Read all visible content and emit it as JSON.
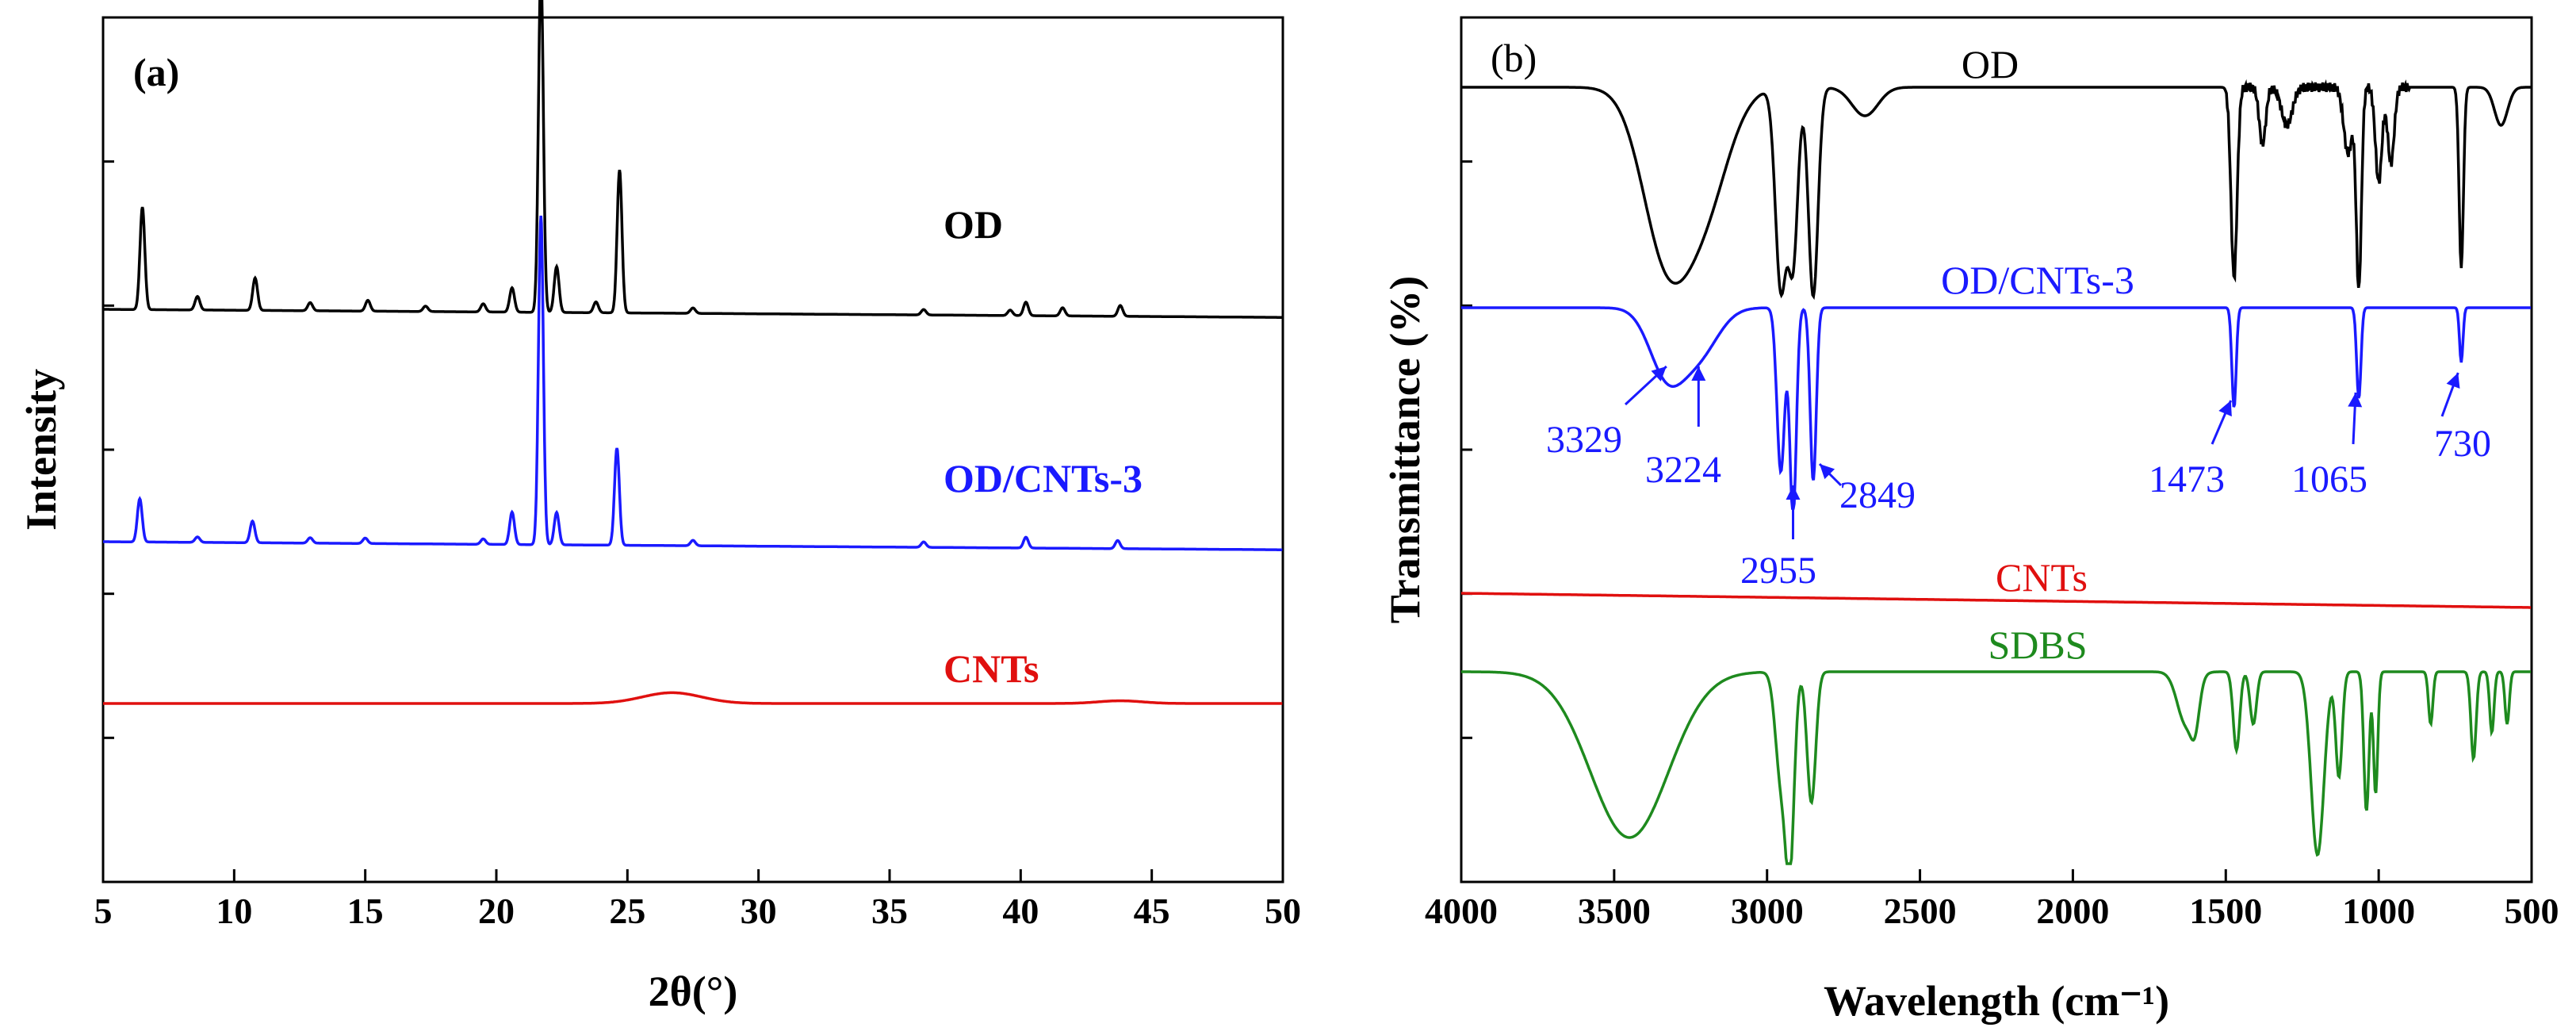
{
  "chart_data": [
    {
      "type": "line",
      "panel_label": "(a)",
      "title": "",
      "xlabel": "2θ(°)",
      "ylabel": "Intensity",
      "xlim": [
        5,
        50
      ],
      "xticks": [
        "5",
        "10",
        "15",
        "20",
        "25",
        "30",
        "35",
        "40",
        "45",
        "50"
      ],
      "yticks_shown": false,
      "colors": {
        "OD": "#000000",
        "OD/CNTs-3": "#1a1aff",
        "CNTs": "#e0100f"
      },
      "series": [
        {
          "name": "OD",
          "label": "OD",
          "baseline_offset": 2,
          "peaks": [
            [
              6.5,
              0.38
            ],
            [
              8.6,
              0.05
            ],
            [
              10.8,
              0.12
            ],
            [
              12.9,
              0.03
            ],
            [
              15.1,
              0.04
            ],
            [
              17.3,
              0.02
            ],
            [
              19.5,
              0.03
            ],
            [
              20.6,
              0.09
            ],
            [
              21.7,
              1.28
            ],
            [
              22.3,
              0.17
            ],
            [
              23.8,
              0.04
            ],
            [
              24.7,
              0.53
            ],
            [
              27.5,
              0.02
            ],
            [
              36.3,
              0.02
            ],
            [
              39.6,
              0.02
            ],
            [
              40.2,
              0.05
            ],
            [
              41.6,
              0.03
            ],
            [
              43.8,
              0.04
            ]
          ]
        },
        {
          "name": "OD/CNTs-3",
          "label": "OD/CNTs-3",
          "baseline_offset": 1,
          "peaks": [
            [
              6.4,
              0.16
            ],
            [
              8.6,
              0.02
            ],
            [
              10.7,
              0.08
            ],
            [
              12.9,
              0.02
            ],
            [
              15.0,
              0.02
            ],
            [
              19.5,
              0.02
            ],
            [
              20.6,
              0.12
            ],
            [
              21.7,
              1.22
            ],
            [
              22.3,
              0.12
            ],
            [
              24.6,
              0.36
            ],
            [
              27.5,
              0.02
            ],
            [
              36.3,
              0.02
            ],
            [
              40.2,
              0.04
            ],
            [
              43.7,
              0.03
            ]
          ]
        },
        {
          "name": "CNTs",
          "label": "CNTs",
          "baseline_offset": 0,
          "peaks": [
            [
              26.7,
              0.04
            ],
            [
              43.8,
              0.01
            ]
          ]
        }
      ]
    },
    {
      "type": "line",
      "panel_label": "(b)",
      "title": "",
      "xlabel": "Wavelength (cm⁻¹)",
      "ylabel": "Transmittance (%)",
      "xlim": [
        4000,
        500
      ],
      "xticks": [
        "4000",
        "3500",
        "3000",
        "2500",
        "2000",
        "1500",
        "1000",
        "500"
      ],
      "yticks_shown": false,
      "colors": {
        "OD": "#000000",
        "OD/CNTs-3": "#1a1aff",
        "CNTs": "#e0100f",
        "SDBS": "#1e8a1e"
      },
      "series": [
        {
          "name": "OD",
          "label": "OD",
          "baseline_offset": 3,
          "bands": [
            [
              3330,
              0.85,
              110
            ],
            [
              3200,
              0.55,
              110
            ],
            [
              2955,
              1.05,
              25
            ],
            [
              2915,
              0.9,
              22
            ],
            [
              2849,
              1.1,
              22
            ],
            [
              2680,
              0.15,
              60
            ],
            [
              1473,
              1.0,
              14
            ],
            [
              1380,
              0.3,
              15
            ],
            [
              1300,
              0.2,
              25
            ],
            [
              1100,
              0.35,
              20
            ],
            [
              1065,
              1.05,
              12
            ],
            [
              1000,
              0.5,
              15
            ],
            [
              960,
              0.4,
              15
            ],
            [
              730,
              0.95,
              10
            ],
            [
              600,
              0.2,
              30
            ]
          ]
        },
        {
          "name": "OD/CNTs-3",
          "label": "OD/CNTs-3",
          "baseline_offset": 2,
          "bands": [
            [
              3329,
              0.35,
              80
            ],
            [
              3224,
              0.25,
              90
            ],
            [
              2955,
              0.9,
              18
            ],
            [
              2915,
              1.15,
              15
            ],
            [
              2849,
              0.95,
              14
            ],
            [
              1473,
              0.55,
              10
            ],
            [
              1065,
              0.5,
              10
            ],
            [
              730,
              0.3,
              8
            ]
          ]
        },
        {
          "name": "CNTs",
          "label": "CNTs",
          "baseline_offset": 1,
          "bands": []
        },
        {
          "name": "SDBS",
          "label": "SDBS",
          "baseline_offset": 0,
          "bands": [
            [
              3450,
              0.95,
              180
            ],
            [
              2955,
              0.6,
              25
            ],
            [
              2925,
              1.05,
              20
            ],
            [
              2855,
              0.75,
              20
            ],
            [
              1630,
              0.3,
              40
            ],
            [
              1600,
              0.2,
              20
            ],
            [
              1465,
              0.45,
              15
            ],
            [
              1410,
              0.3,
              15
            ],
            [
              1200,
              1.05,
              30
            ],
            [
              1130,
              0.6,
              15
            ],
            [
              1040,
              0.8,
              12
            ],
            [
              1010,
              0.7,
              10
            ],
            [
              830,
              0.3,
              10
            ],
            [
              690,
              0.5,
              12
            ],
            [
              630,
              0.35,
              10
            ],
            [
              580,
              0.3,
              10
            ]
          ]
        }
      ],
      "annotations": [
        "3329",
        "3224",
        "2955",
        "2849",
        "1473",
        "1065",
        "730"
      ]
    }
  ]
}
